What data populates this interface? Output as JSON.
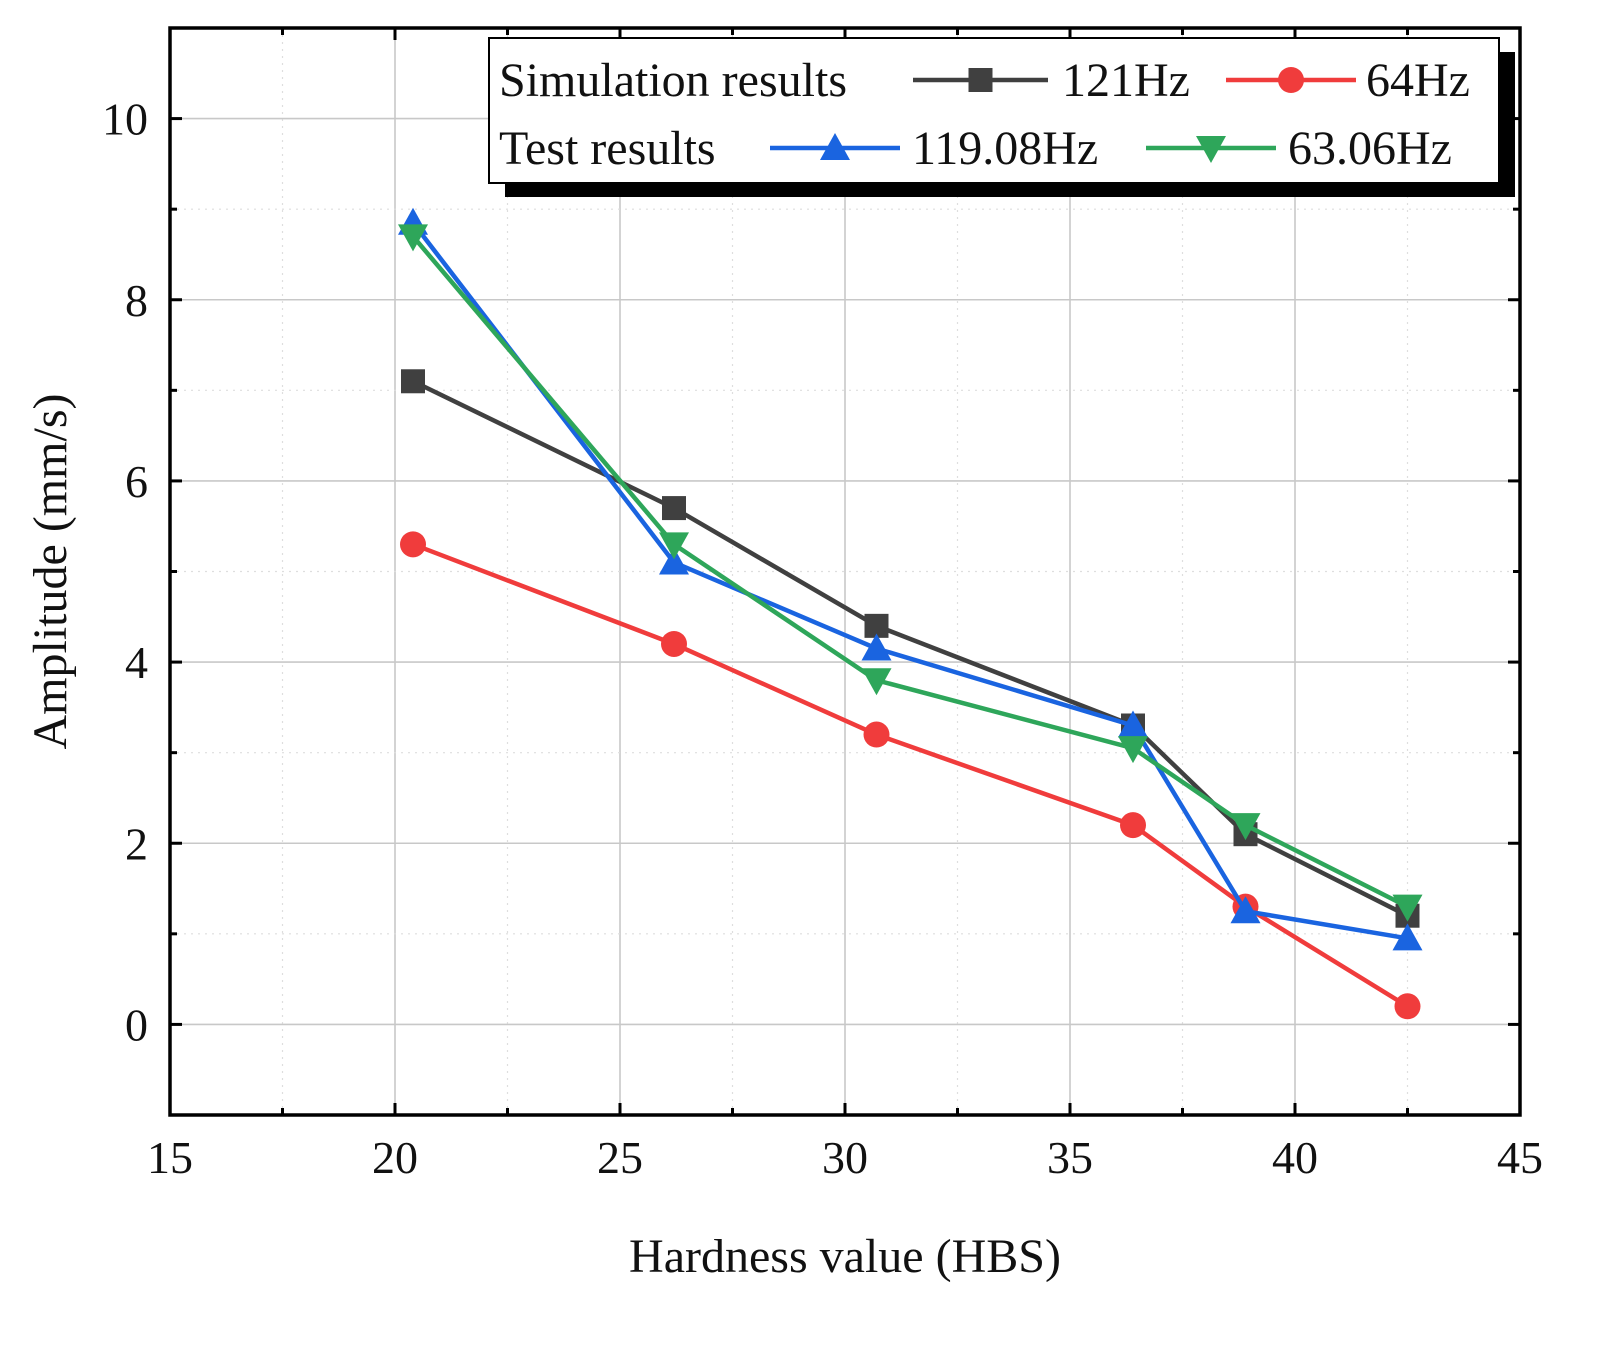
{
  "chart_data": {
    "type": "line",
    "xlabel": "Hardness value (HBS)",
    "ylabel": "Amplitude (mm/s)",
    "xlim": [
      15,
      45
    ],
    "ylim": [
      -1,
      11
    ],
    "xticks": [
      "15",
      "20",
      "25",
      "30",
      "35",
      "40",
      "45"
    ],
    "yticks": [
      "0",
      "2",
      "4",
      "6",
      "8",
      "10"
    ],
    "grid": true,
    "legend_position": "top-right",
    "legend_groups": [
      {
        "label": "Simulation results",
        "series": [
          "121Hz",
          "64Hz"
        ]
      },
      {
        "label": "Test results",
        "series": [
          "119.08Hz",
          "63.06Hz"
        ]
      }
    ],
    "x": [
      20.4,
      26.2,
      30.7,
      36.4,
      38.9,
      42.5
    ],
    "series": [
      {
        "name": "121Hz",
        "group": "Simulation results",
        "color": "#404040",
        "marker": "square",
        "values": [
          7.1,
          5.7,
          4.4,
          3.3,
          2.1,
          1.2
        ]
      },
      {
        "name": "64Hz",
        "group": "Simulation results",
        "color": "#f03c3c",
        "marker": "circle",
        "values": [
          5.3,
          4.2,
          3.2,
          2.2,
          1.3,
          0.2
        ]
      },
      {
        "name": "119.08Hz",
        "group": "Test results",
        "color": "#1a64e0",
        "marker": "triangle-up",
        "values": [
          8.85,
          5.1,
          4.15,
          3.3,
          1.25,
          0.95
        ]
      },
      {
        "name": "63.06Hz",
        "group": "Test results",
        "color": "#2ea65a",
        "marker": "triangle-down",
        "values": [
          8.7,
          5.3,
          3.8,
          3.05,
          2.2,
          1.3
        ]
      }
    ]
  }
}
